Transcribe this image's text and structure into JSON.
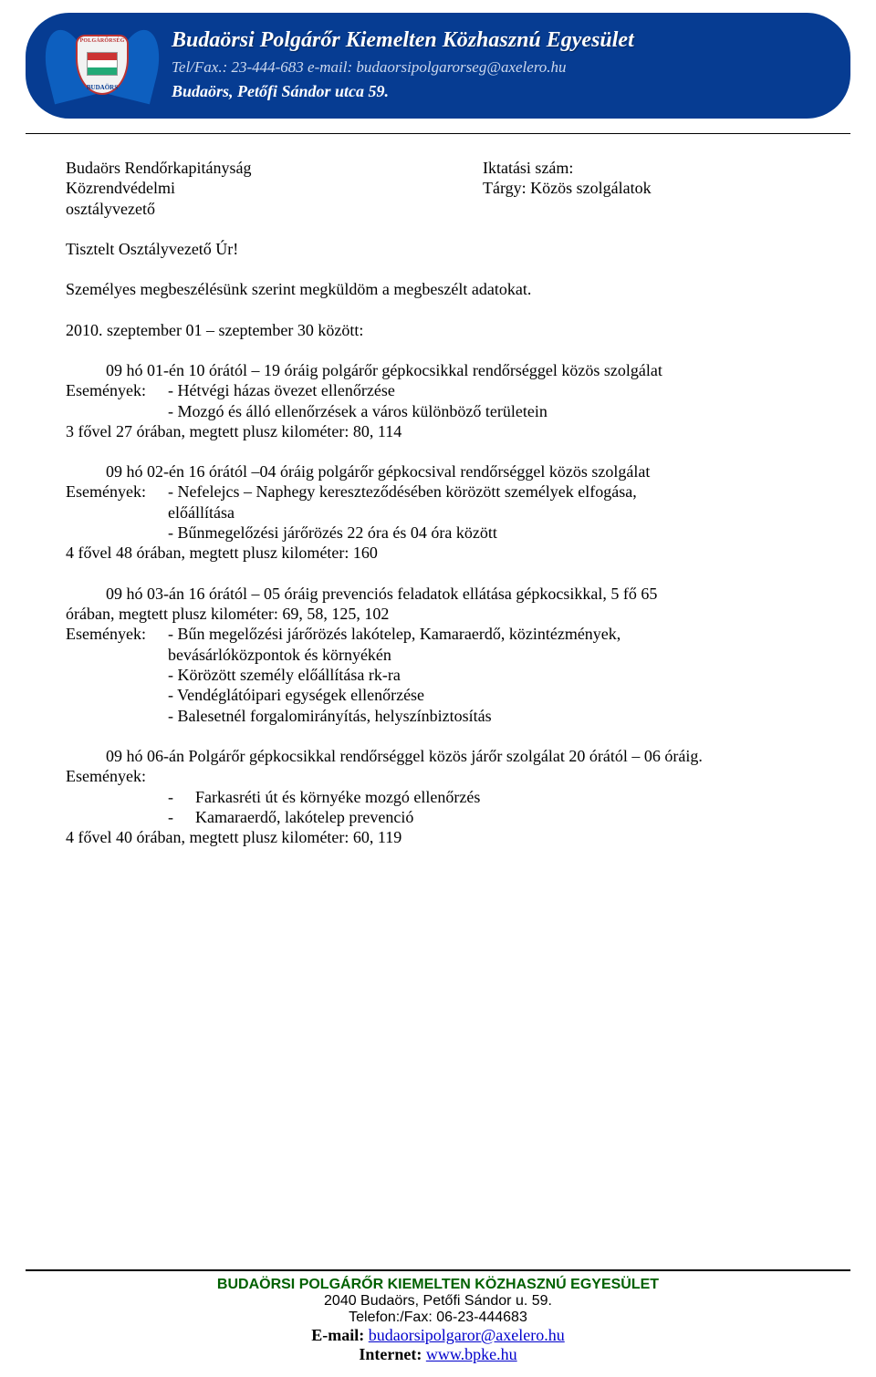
{
  "banner": {
    "title": "Budaörsi Polgárőr Kiemelten Közhasznú Egyesület",
    "contact": "Tel/Fax.: 23-444-683 e-mail: budaorsipolgarorseg@axelero.hu",
    "address": "Budaörs, Petőfi Sándor utca 59.",
    "logo_top": "POLGÁRŐRSÉG",
    "logo_bottom": "BUDAÖRS",
    "bg_color": "#063c92"
  },
  "address_block": {
    "left1": "Budaörs Rendőrkapitányság",
    "left2": "Közrendvédelmi",
    "left3": "osztályvezető",
    "right1": "Iktatási szám:",
    "right2": "Tárgy: Közös szolgálatok"
  },
  "salutation": "Tisztelt Osztályvezető Úr!",
  "intro": "Személyes megbeszélésünk szerint megküldöm a megbeszélt adatokat.",
  "period": "2010. szeptember 01 – szeptember 30 között:",
  "events_label": "Események:",
  "e1": {
    "line": "09 hó 01-én 10 órától – 19 óráig polgárőr gépkocsikkal rendőrséggel közös szolgálat",
    "ev1": "- Hétvégi házas övezet ellenőrzése",
    "ev2": "- Mozgó és álló ellenőrzések a város különböző területein",
    "sum": "3 fővel 27 órában, megtett plusz kilométer: 80, 114"
  },
  "e2": {
    "line": "09 hó 02-én 16 órától –04 óráig polgárőr gépkocsival rendőrséggel közös szolgálat",
    "ev1a": "- Nefelejcs – Naphegy kereszteződésében körözött személyek elfogása,",
    "ev1b": "előállítása",
    "ev2": "- Bűnmegelőzési járőrözés 22 óra és 04 óra között",
    "sum": "4 fővel 48 órában, megtett plusz kilométer: 160"
  },
  "e3": {
    "line1": "09 hó 03-án 16 órától – 05 óráig prevenciós feladatok ellátása gépkocsikkal, 5 fő 65",
    "line2": "órában, megtett plusz kilométer: 69, 58, 125, 102",
    "ev1a": "- Bűn megelőzési járőrözés lakótelep, Kamaraerdő, közintézmények,",
    "ev1b": "bevásárlóközpontok és környékén",
    "ev2": "- Körözött személy előállítása rk-ra",
    "ev3": "- Vendéglátóipari egységek ellenőrzése",
    "ev4": "- Balesetnél forgalomirányítás, helyszínbiztosítás"
  },
  "e4": {
    "line": "09 hó 06-án Polgárőr gépkocsikkal rendőrséggel közös járőr szolgálat 20 órától – 06 óráig.",
    "b1": "Farkasréti út és környéke mozgó ellenőrzés",
    "b2": "Kamaraerdő, lakótelep prevenció",
    "sum": "4 fővel 40 órában, megtett plusz kilométer: 60, 119"
  },
  "footer": {
    "l1": "BUDAÖRSI POLGÁRŐR KIEMELTEN KÖZHASZNÚ EGYESÜLET",
    "l2": "2040 Budaörs, Petőfi Sándor u. 59.",
    "l3": "Telefon:/Fax: 06-23-444683",
    "l4_label": "E-mail: ",
    "l4_link": "budaorsipolgaror@axelero.hu",
    "l5_label": "Internet: ",
    "l5_link": "www.bpke.hu"
  }
}
